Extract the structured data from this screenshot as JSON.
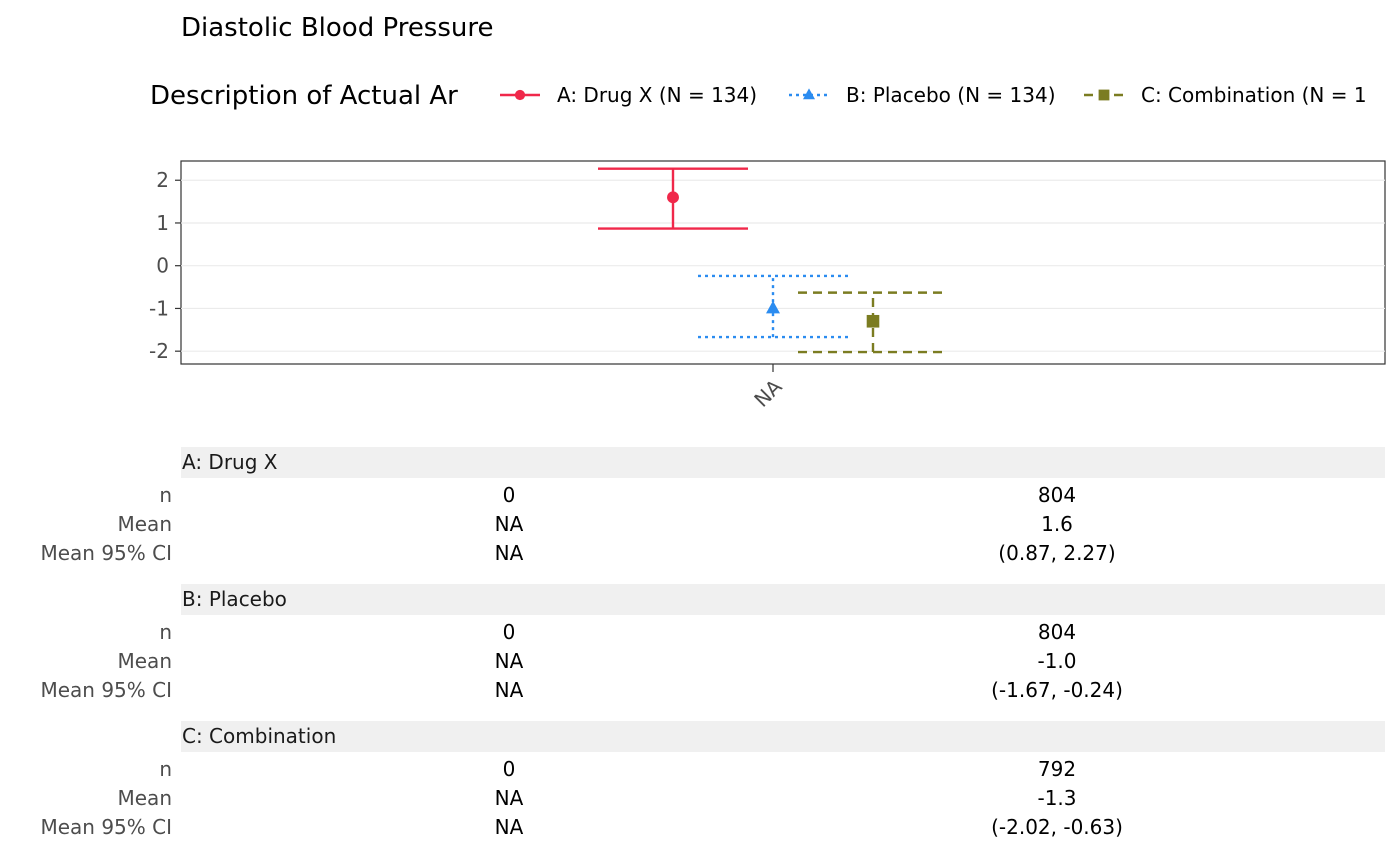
{
  "title": "Diastolic Blood Pressure",
  "legend_title": "Description of Actual Ar",
  "chart_data": {
    "type": "scatter",
    "title": "Diastolic Blood Pressure",
    "x_categories": [
      "NA"
    ],
    "xlabel": "",
    "ylabel": "",
    "ylim": [
      -2.3,
      2.45
    ],
    "y_ticks": [
      "2",
      "1",
      "0",
      "-1",
      "-2"
    ],
    "grid": true,
    "legend_placement": "top",
    "series": [
      {
        "name": "A: Drug X (N = 134)",
        "x": "NA",
        "mean": 1.6,
        "ci": [
          0.87,
          2.27
        ],
        "color": "#f0284a",
        "marker": "circle",
        "line": "solid"
      },
      {
        "name": "B: Placebo (N = 134)",
        "x": "NA",
        "mean": -1.0,
        "ci": [
          -1.67,
          -0.24
        ],
        "color": "#2b8cf0",
        "marker": "triangle",
        "line": "dotted"
      },
      {
        "name": "C: Combination (N = 1",
        "x": "NA",
        "mean": -1.3,
        "ci": [
          -2.02,
          -0.63
        ],
        "color": "#7b7c21",
        "marker": "square",
        "line": "dashed"
      }
    ]
  },
  "table": {
    "row_labels": [
      "n",
      "Mean",
      "Mean 95% CI"
    ],
    "groups": [
      {
        "header": "A: Drug X",
        "col1": [
          "0",
          "NA",
          "NA"
        ],
        "col2": [
          "804",
          "1.6",
          "(0.87, 2.27)"
        ]
      },
      {
        "header": "B: Placebo",
        "col1": [
          "0",
          "NA",
          "NA"
        ],
        "col2": [
          "804",
          "-1.0",
          "(-1.67, -0.24)"
        ]
      },
      {
        "header": "C: Combination",
        "col1": [
          "0",
          "NA",
          "NA"
        ],
        "col2": [
          "792",
          "-1.3",
          "(-2.02, -0.63)"
        ]
      }
    ]
  }
}
